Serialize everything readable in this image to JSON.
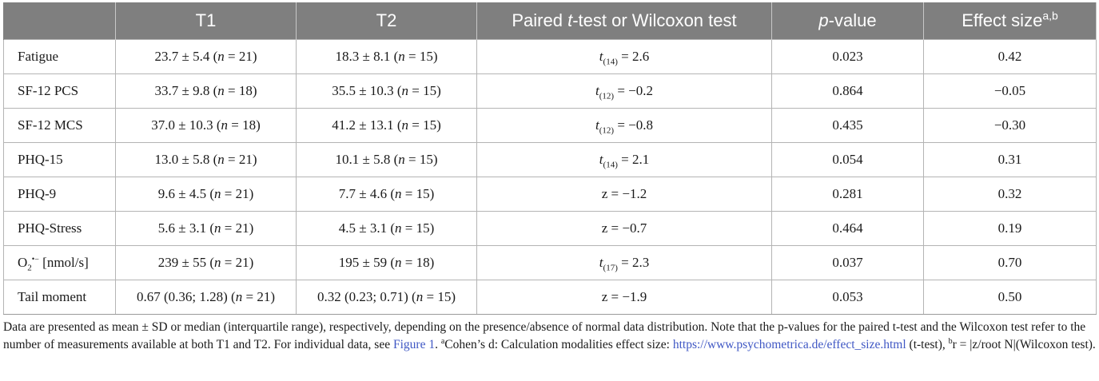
{
  "table": {
    "headers": {
      "measure": "",
      "t1": "T1",
      "t2": "T2",
      "test_pre": "Paired ",
      "test_ital": "t",
      "test_post": "-test or Wilcoxon test",
      "p_ital": "p",
      "p_post": "-value",
      "effect": "Effect size",
      "effect_sup": "a,b"
    },
    "rows": [
      {
        "measure": "Fatigue",
        "t1_val": "23.7 ± 5.4 (",
        "t1_n": "n",
        "t1_rest": " = 21)",
        "t2_val": "18.3 ± 8.1 (",
        "t2_n": "n",
        "t2_rest": " = 15)",
        "stat_var": "t",
        "stat_sub": "(14)",
        "stat_rest": " = 2.6",
        "p": "0.023",
        "effect": "0.42"
      },
      {
        "measure": "SF-12 PCS",
        "t1_val": "33.7 ± 9.8 (",
        "t1_n": "n",
        "t1_rest": " = 18)",
        "t2_val": "35.5 ± 10.3 (",
        "t2_n": "n",
        "t2_rest": " = 15)",
        "stat_var": "t",
        "stat_sub": "(12)",
        "stat_rest": " = −0.2",
        "p": "0.864",
        "effect": "−0.05"
      },
      {
        "measure": "SF-12 MCS",
        "t1_val": "37.0 ± 10.3 (",
        "t1_n": "n",
        "t1_rest": " = 18)",
        "t2_val": "41.2 ± 13.1 (",
        "t2_n": "n",
        "t2_rest": " = 15)",
        "stat_var": "t",
        "stat_sub": "(12)",
        "stat_rest": " = −0.8",
        "p": "0.435",
        "effect": "−0.30"
      },
      {
        "measure": "PHQ-15",
        "t1_val": "13.0 ± 5.8 (",
        "t1_n": "n",
        "t1_rest": " = 21)",
        "t2_val": "10.1 ± 5.8 (",
        "t2_n": "n",
        "t2_rest": " = 15)",
        "stat_var": "t",
        "stat_sub": "(14)",
        "stat_rest": " = 2.1",
        "p": "0.054",
        "effect": "0.31"
      },
      {
        "measure": "PHQ-9",
        "t1_val": "9.6 ± 4.5 (",
        "t1_n": "n",
        "t1_rest": " = 21)",
        "t2_val": "7.7 ± 4.6 (",
        "t2_n": "n",
        "t2_rest": " = 15)",
        "stat_var": "z",
        "stat_sub": "",
        "stat_rest": " = −1.2",
        "p": "0.281",
        "effect": "0.32"
      },
      {
        "measure": "PHQ-Stress",
        "t1_val": "5.6 ± 3.1 (",
        "t1_n": "n",
        "t1_rest": " = 21)",
        "t2_val": "4.5 ± 3.1 (",
        "t2_n": "n",
        "t2_rest": " = 15)",
        "stat_var": "z",
        "stat_sub": "",
        "stat_rest": " = −0.7",
        "p": "0.464",
        "effect": "0.19"
      },
      {
        "measure": "O",
        "measure_sub": "2",
        "measure_sup": "•−",
        "measure_unit": " [nmol/s]",
        "t1_val": "239 ± 55 (",
        "t1_n": "n",
        "t1_rest": " = 21)",
        "t2_val": "195 ± 59 (",
        "t2_n": "n",
        "t2_rest": " = 18)",
        "stat_var": "t",
        "stat_sub": "(17)",
        "stat_rest": " = 2.3",
        "p": "0.037",
        "effect": "0.70"
      },
      {
        "measure": "Tail moment",
        "t1_val": "0.67 (0.36; 1.28) (",
        "t1_n": "n",
        "t1_rest": " = 21)",
        "t2_val": "0.32 (0.23; 0.71) (",
        "t2_n": "n",
        "t2_rest": " = 15)",
        "stat_var": "z",
        "stat_sub": "",
        "stat_rest": " = −1.9",
        "p": "0.053",
        "effect": "0.50"
      }
    ]
  },
  "footnote": {
    "text_before_link": "Data are presented as mean ± SD or median (interquartile range), respectively, depending on the presence/absence of normal data distribution. Note that the p-values for the paired t-test and the Wilcoxon test refer to the number of measurements available at both T1 and T2. For individual data, see ",
    "figure_link": "Figure 1",
    "after_link": ". ",
    "sup_a": "a",
    "cohen_text": "Cohen’s d: Calculation modalities effect size: ",
    "url": "https://www.psychometrica.de/effect_size.html",
    "ttest": " (t-test), ",
    "sup_b": "b",
    "r_text": "r = |z/root N|(Wilcoxon test)."
  }
}
